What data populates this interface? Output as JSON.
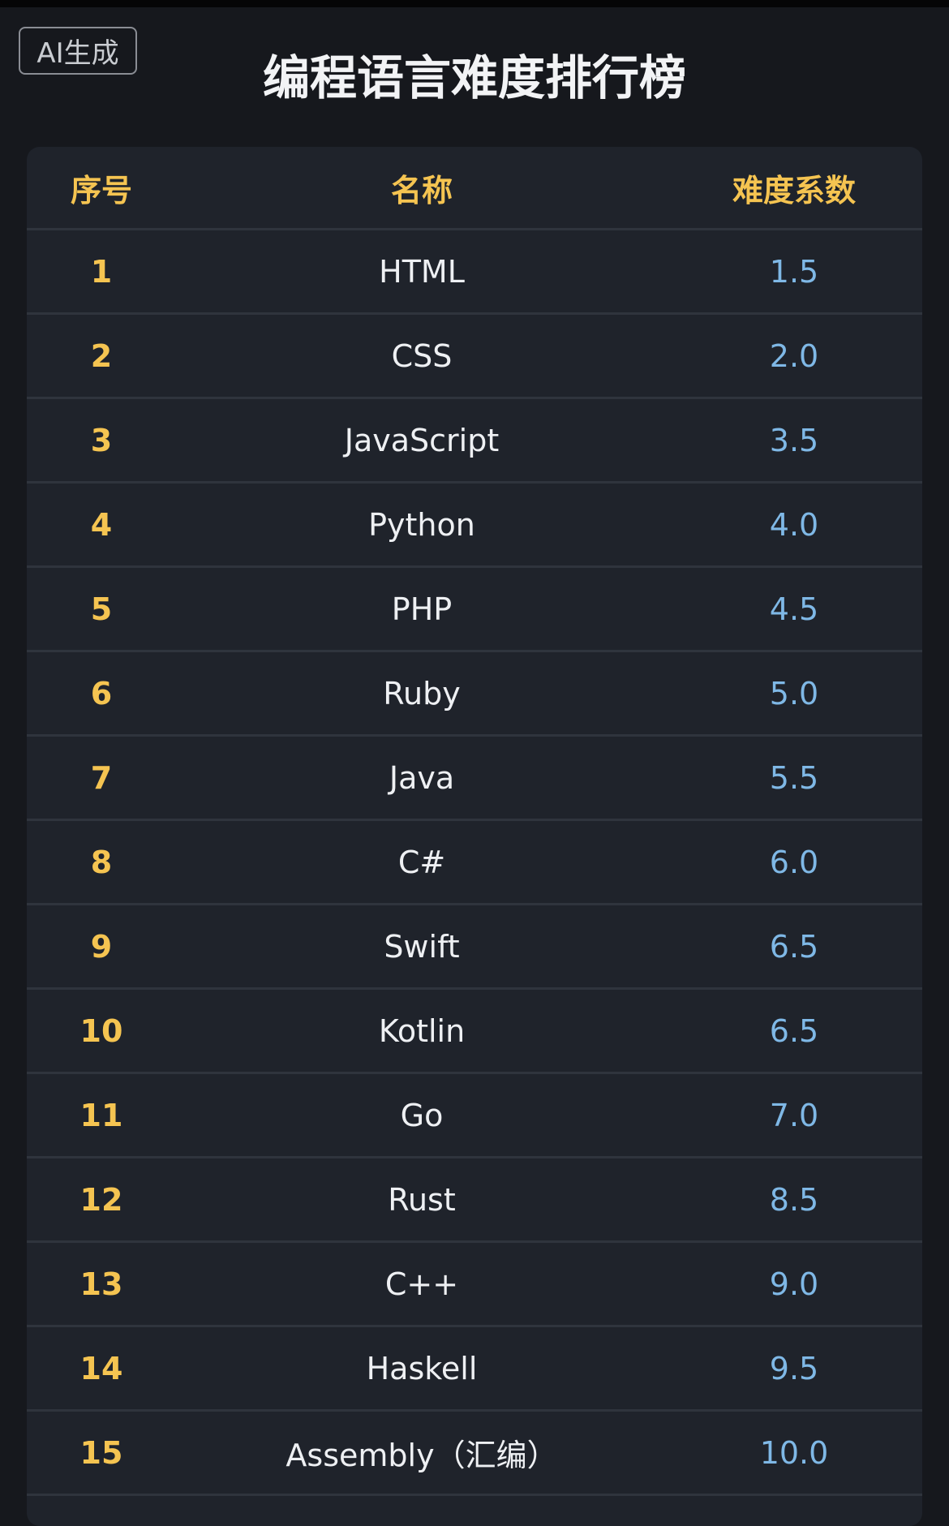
{
  "badge": "AI生成",
  "title": "编程语言难度排行榜",
  "table": {
    "header": [
      "序号",
      "名称",
      "难度系数"
    ],
    "rows": [
      [
        "1",
        "HTML",
        "1.5"
      ],
      [
        "2",
        "CSS",
        "2.0"
      ],
      [
        "3",
        "JavaScript",
        "3.5"
      ],
      [
        "4",
        "Python",
        "4.0"
      ],
      [
        "5",
        "PHP",
        "4.5"
      ],
      [
        "6",
        "Ruby",
        "5.0"
      ],
      [
        "7",
        "Java",
        "5.5"
      ],
      [
        "8",
        "C#",
        "6.0"
      ],
      [
        "9",
        "Swift",
        "6.5"
      ],
      [
        "10",
        "Kotlin",
        "6.5"
      ],
      [
        "11",
        "Go",
        "7.0"
      ],
      [
        "12",
        "Rust",
        "8.5"
      ],
      [
        "13",
        "C++",
        "9.0"
      ],
      [
        "14",
        "Haskell",
        "9.5"
      ],
      [
        "15",
        "Assembly（汇编）",
        "10.0"
      ]
    ]
  }
}
